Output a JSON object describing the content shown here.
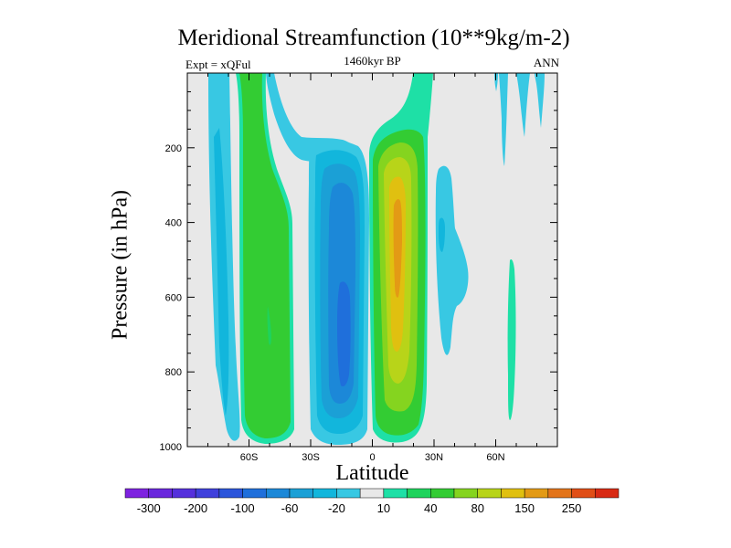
{
  "chart_data": {
    "type": "contour",
    "title": "Meridional Streamfunction (10**9kg/m-2)",
    "left_string": "Expt = xQFul",
    "center_string": "1460kyr BP",
    "right_string": "ANN",
    "xlabel": "Latitude",
    "ylabel": "Pressure (in hPa)",
    "xlim": [
      -90,
      90
    ],
    "ylim": [
      1000,
      0
    ],
    "x_ticks": [
      {
        "value": -60,
        "label": "60S"
      },
      {
        "value": -30,
        "label": "30S"
      },
      {
        "value": 0,
        "label": "0"
      },
      {
        "value": 30,
        "label": "30N"
      },
      {
        "value": 60,
        "label": "60N"
      }
    ],
    "y_ticks": [
      {
        "value": 200,
        "label": "200"
      },
      {
        "value": 400,
        "label": "400"
      },
      {
        "value": 600,
        "label": "600"
      },
      {
        "value": 800,
        "label": "800"
      },
      {
        "value": 1000,
        "label": "1000"
      }
    ],
    "colorbar": {
      "levels": [
        -300,
        -250,
        -200,
        -150,
        -100,
        -80,
        -60,
        -40,
        -20,
        -10,
        10,
        20,
        40,
        60,
        80,
        100,
        150,
        200,
        250,
        300
      ],
      "label_indices": [
        1,
        3,
        5,
        7,
        9,
        11,
        13,
        15,
        17,
        19
      ],
      "labels": [
        "-300",
        "-200",
        "-100",
        "-60",
        "-20",
        "10",
        "40",
        "80",
        "150",
        "250"
      ],
      "colors": [
        "#7e22e0",
        "#6a27dd",
        "#5530dc",
        "#3f40dc",
        "#2b55db",
        "#1f6fdb",
        "#1c88d8",
        "#1ba0d6",
        "#12b6dc",
        "#38c8e3",
        "#e8e8e8",
        "#1ee0a6",
        "#1ed35c",
        "#33cc33",
        "#85d41f",
        "#b8d419",
        "#e0c010",
        "#e39a15",
        "#e3741a",
        "#e04e16",
        "#d82a14"
      ]
    },
    "contour_regions": [
      {
        "name": "sh-polar-cell",
        "sign": "negative",
        "levels": [
          "-10",
          "-20",
          "-40"
        ]
      },
      {
        "name": "sh-ferrel-cell",
        "sign": "positive",
        "levels": [
          "10",
          "20",
          "40"
        ]
      },
      {
        "name": "sh-hadley-cell",
        "sign": "negative",
        "levels": [
          "-10",
          "-20",
          "-40",
          "-60",
          "-80"
        ]
      },
      {
        "name": "nh-hadley-cell",
        "sign": "positive",
        "levels": [
          "10",
          "20",
          "40",
          "60",
          "80",
          "100"
        ]
      },
      {
        "name": "nh-ferrel-cell",
        "sign": "negative",
        "levels": [
          "-10",
          "-20"
        ]
      },
      {
        "name": "nh-midlat-positive",
        "sign": "positive",
        "levels": [
          "10"
        ]
      }
    ]
  }
}
